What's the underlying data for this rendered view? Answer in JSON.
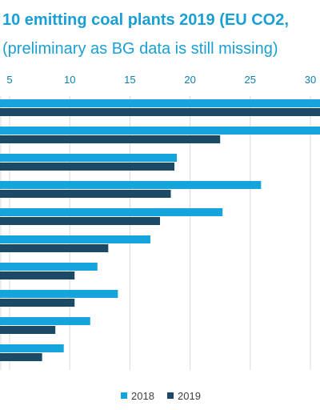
{
  "chart_data": {
    "type": "bar",
    "orientation": "horizontal",
    "title": "10 emitting coal plants 2019 (EU CO2,",
    "subtitle": "(preliminary as BG data is still missing)",
    "xticks": [
      5,
      10,
      15,
      20,
      25,
      30
    ],
    "xlim": [
      4.2,
      30.8
    ],
    "grid": true,
    "legend_position": "bottom",
    "categories": [
      "",
      "",
      "",
      "",
      "",
      "",
      "",
      "",
      "",
      ""
    ],
    "series": [
      {
        "name": "2018",
        "color": "#16a4dd",
        "values": [
          30.8,
          30.8,
          18.9,
          25.9,
          22.7,
          16.7,
          12.3,
          14.0,
          11.7,
          9.5
        ]
      },
      {
        "name": "2019",
        "color": "#1a4a66",
        "values": [
          30.8,
          22.5,
          18.7,
          18.4,
          17.5,
          13.2,
          10.4,
          10.4,
          8.8,
          7.7
        ]
      }
    ]
  }
}
